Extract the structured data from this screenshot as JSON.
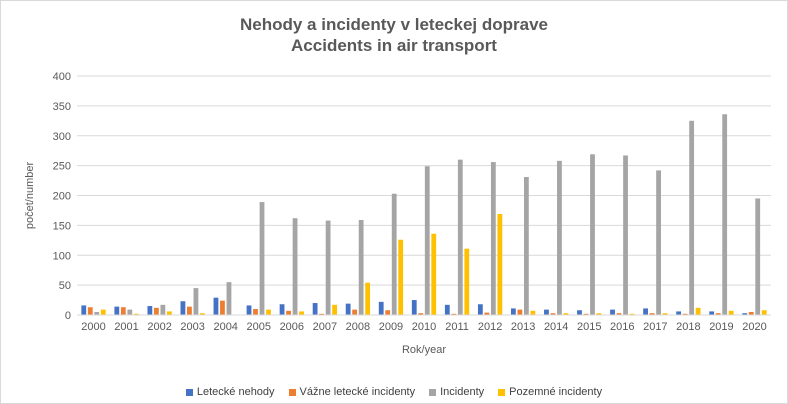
{
  "chart_data": {
    "type": "bar",
    "title": "Nehody a incidenty v leteckej doprave",
    "subtitle": "Accidents in air transport",
    "xlabel": "Rok/year",
    "ylabel": "počet/number",
    "ylim": [
      0,
      400
    ],
    "yticks": [
      0,
      50,
      100,
      150,
      200,
      250,
      300,
      350,
      400
    ],
    "grid": true,
    "legend_position": "bottom",
    "categories": [
      "2000",
      "2001",
      "2002",
      "2003",
      "2004",
      "2005",
      "2006",
      "2007",
      "2008",
      "2009",
      "2010",
      "2011",
      "2012",
      "2013",
      "2014",
      "2015",
      "2016",
      "2017",
      "2018",
      "2019",
      "2020"
    ],
    "series": [
      {
        "name": "Letecké nehody",
        "color": "#4472C4",
        "values": [
          16,
          14,
          15,
          23,
          29,
          16,
          18,
          20,
          19,
          22,
          25,
          17,
          18,
          11,
          9,
          8,
          9,
          11,
          6,
          6,
          3
        ]
      },
      {
        "name": "Vážne letecké incidenty",
        "color": "#ED7D31",
        "values": [
          13,
          13,
          12,
          14,
          24,
          10,
          7,
          2,
          9,
          8,
          3,
          2,
          4,
          9,
          3,
          2,
          3,
          3,
          2,
          3,
          5
        ]
      },
      {
        "name": "Incidenty",
        "color": "#A5A5A5",
        "values": [
          5,
          9,
          17,
          45,
          55,
          189,
          162,
          158,
          159,
          203,
          249,
          260,
          256,
          231,
          258,
          269,
          267,
          242,
          325,
          336,
          195
        ]
      },
      {
        "name": "Pozemné incidenty",
        "color": "#FFC000",
        "values": [
          9,
          2,
          6,
          3,
          0,
          9,
          6,
          17,
          54,
          126,
          136,
          111,
          169,
          7,
          3,
          3,
          2,
          3,
          12,
          7,
          8
        ]
      }
    ]
  }
}
